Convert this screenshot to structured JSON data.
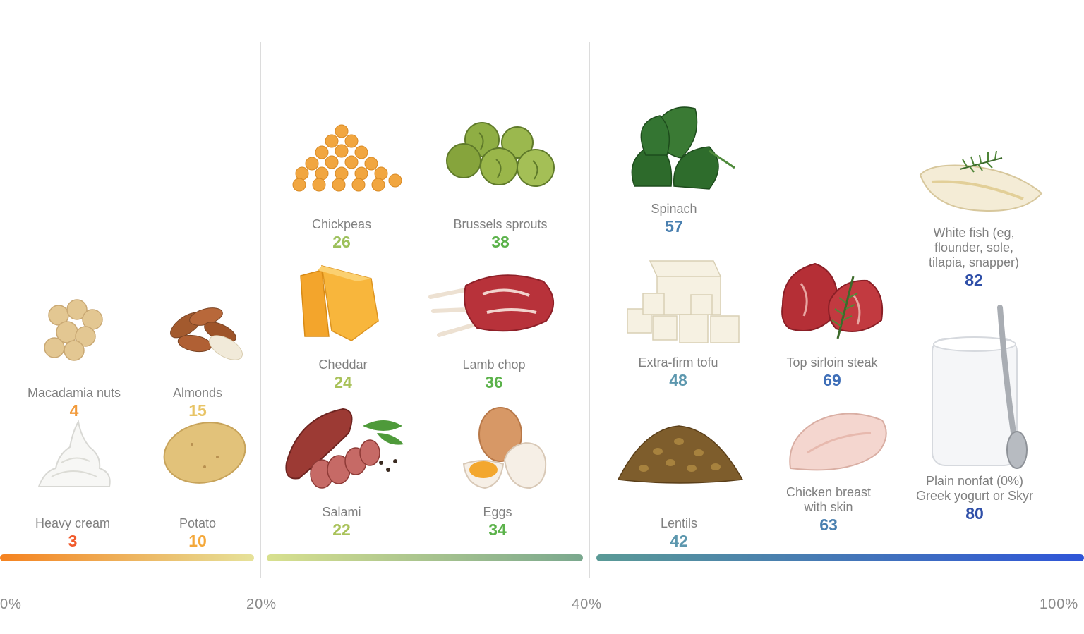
{
  "axis": {
    "ticks": [
      {
        "label": "0%",
        "value": 0
      },
      {
        "label": "20%",
        "value": 20
      },
      {
        "label": "40%",
        "value": 40
      },
      {
        "label": "100%",
        "value": 100
      }
    ]
  },
  "bands": [
    {
      "from": 0,
      "to": 20,
      "gradient": [
        "#f5821f",
        "#e6e29a"
      ]
    },
    {
      "from": 20,
      "to": 40,
      "gradient": [
        "#d8e08e",
        "#7aa88e"
      ]
    },
    {
      "from": 40,
      "to": 100,
      "gradient": [
        "#5a9a96",
        "#2f55d8"
      ]
    }
  ],
  "foods": [
    {
      "id": "macadamia",
      "name": "Macadamia nuts",
      "value": "4",
      "color": "#f29a3a",
      "icon": "macadamia-nuts-icon"
    },
    {
      "id": "almonds",
      "name": "Almonds",
      "value": "15",
      "color": "#e8c466",
      "icon": "almonds-icon"
    },
    {
      "id": "heavy-cream",
      "name": "Heavy cream",
      "value": "3",
      "color": "#f15a2b",
      "icon": "whipped-cream-icon"
    },
    {
      "id": "potato",
      "name": "Potato",
      "value": "10",
      "color": "#f4a83a",
      "icon": "potato-icon"
    },
    {
      "id": "chickpeas",
      "name": "Chickpeas",
      "value": "26",
      "color": "#9cc05a",
      "icon": "chickpeas-icon"
    },
    {
      "id": "brussels",
      "name": "Brussels sprouts",
      "value": "38",
      "color": "#5bb24a",
      "icon": "brussels-sprouts-icon"
    },
    {
      "id": "cheddar",
      "name": "Cheddar",
      "value": "24",
      "color": "#a9c25a",
      "icon": "cheddar-icon"
    },
    {
      "id": "lamb",
      "name": "Lamb chop",
      "value": "36",
      "color": "#5bb24a",
      "icon": "lamb-chop-icon"
    },
    {
      "id": "salami",
      "name": "Salami",
      "value": "22",
      "color": "#a9c25a",
      "icon": "salami-icon"
    },
    {
      "id": "eggs",
      "name": "Eggs",
      "value": "34",
      "color": "#5bb24a",
      "icon": "eggs-icon"
    },
    {
      "id": "spinach",
      "name": "Spinach",
      "value": "57",
      "color": "#4a80b0",
      "icon": "spinach-icon"
    },
    {
      "id": "tofu",
      "name": "Extra-firm tofu",
      "value": "48",
      "color": "#5c97ae",
      "icon": "tofu-icon"
    },
    {
      "id": "lentils",
      "name": "Lentils",
      "value": "42",
      "color": "#5c97ae",
      "icon": "lentils-icon"
    },
    {
      "id": "sirloin",
      "name": "Top sirloin steak",
      "value": "69",
      "color": "#3f6fb8",
      "icon": "steak-icon"
    },
    {
      "id": "chicken",
      "name": "Chicken breast\nwith skin",
      "value": "63",
      "color": "#4a80b0",
      "icon": "chicken-breast-icon"
    },
    {
      "id": "whitefish",
      "name": "White fish (eg,\nflounder, sole,\ntilapia, snapper)",
      "value": "82",
      "color": "#2f4fa8",
      "icon": "white-fish-icon"
    },
    {
      "id": "yogurt",
      "name": "Plain nonfat (0%)\nGreek yogurt or Skyr",
      "value": "80",
      "color": "#2f4fa8",
      "icon": "yogurt-jar-icon"
    }
  ]
}
